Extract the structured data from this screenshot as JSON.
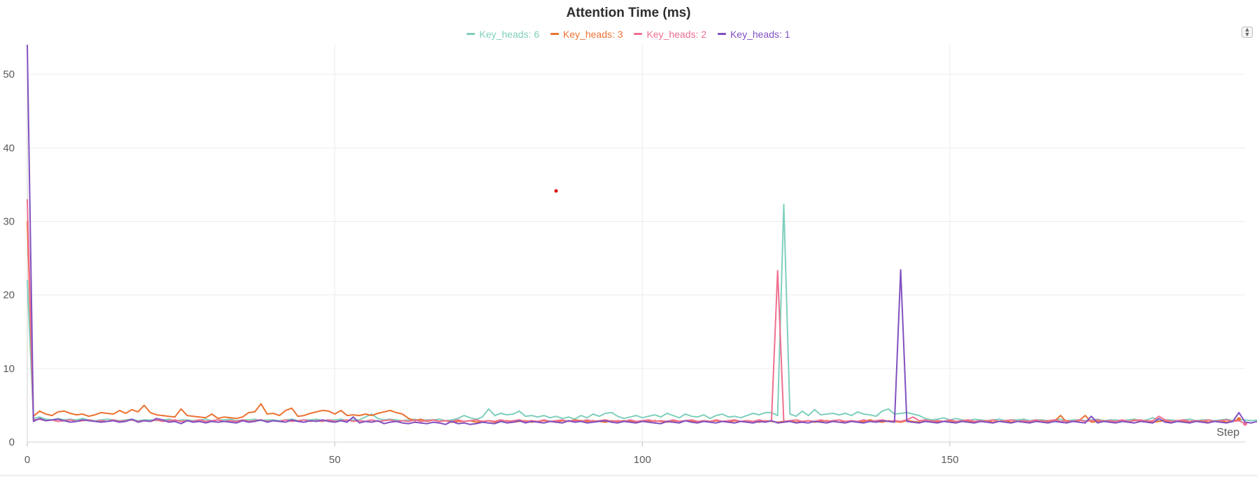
{
  "chart_data": {
    "type": "line",
    "title": "Attention Time (ms)",
    "xlabel": "Step",
    "ylabel": "",
    "xlim": [
      0,
      198
    ],
    "ylim": [
      0,
      54
    ],
    "x_ticks": [
      0,
      50,
      100,
      150
    ],
    "y_ticks": [
      0,
      10,
      20,
      30,
      40,
      50
    ],
    "grid": true,
    "legend_position": "top-center",
    "series": [
      {
        "name": "Key_heads: 6",
        "color": "#7fcfbd",
        "values": [
          22.0,
          3.2,
          3.4,
          3.1,
          3.0,
          3.2,
          3.0,
          3.1,
          3.0,
          3.2,
          3.0,
          2.9,
          3.0,
          3.1,
          3.0,
          2.9,
          3.0,
          3.1,
          2.9,
          3.0,
          3.0,
          2.9,
          3.0,
          3.1,
          2.9,
          3.0,
          3.0,
          2.9,
          3.0,
          3.1,
          2.9,
          3.0,
          3.0,
          3.1,
          2.9,
          3.0,
          3.0,
          3.1,
          2.9,
          3.0,
          3.0,
          2.9,
          3.0,
          3.1,
          2.9,
          3.0,
          3.0,
          3.1,
          2.9,
          3.0,
          3.0,
          3.1,
          2.9,
          3.0,
          3.0,
          3.4,
          3.8,
          3.2,
          3.0,
          3.1,
          3.0,
          2.9,
          3.0,
          3.1,
          2.9,
          3.0,
          3.0,
          3.1,
          2.9,
          3.0,
          3.2,
          3.6,
          3.3,
          3.1,
          3.4,
          4.5,
          3.6,
          3.9,
          3.7,
          3.8,
          4.2,
          3.5,
          3.6,
          3.4,
          3.6,
          3.3,
          3.5,
          3.2,
          3.4,
          3.1,
          3.6,
          3.3,
          3.8,
          3.5,
          3.9,
          4.0,
          3.5,
          3.2,
          3.4,
          3.6,
          3.3,
          3.5,
          3.7,
          3.4,
          3.9,
          3.6,
          3.3,
          3.8,
          3.5,
          3.4,
          3.7,
          3.2,
          3.6,
          3.8,
          3.4,
          3.5,
          3.3,
          3.6,
          3.9,
          3.7,
          4.0,
          4.0,
          3.6,
          32.3,
          3.8,
          3.5,
          4.2,
          3.6,
          4.4,
          3.7,
          3.8,
          3.9,
          3.7,
          3.9,
          3.6,
          4.1,
          3.8,
          3.7,
          3.5,
          4.2,
          4.5,
          3.8,
          3.9,
          4.0,
          3.8,
          3.6,
          3.2,
          3.0,
          3.1,
          3.3,
          3.0,
          3.2,
          3.0,
          2.9,
          3.1,
          3.0,
          2.9,
          3.0,
          3.1,
          2.9,
          3.0,
          3.0,
          3.1,
          2.9,
          3.0,
          3.0,
          2.9,
          3.0,
          3.1,
          2.9,
          3.0,
          3.0,
          2.9,
          3.0,
          3.1,
          2.9,
          3.0,
          3.0,
          2.9,
          3.0,
          3.1,
          2.9,
          3.0,
          3.3,
          2.9,
          3.0,
          3.0,
          2.9,
          3.0,
          3.1,
          2.9,
          3.0,
          3.0,
          2.9,
          3.0,
          3.1,
          2.9,
          3.0,
          3.0,
          2.9,
          3.0,
          3.1,
          2.9,
          3.0,
          2.8
        ]
      },
      {
        "name": "Key_heads: 3",
        "color": "#ec7232",
        "values": [
          30.0,
          3.5,
          4.2,
          3.8,
          3.6,
          4.1,
          4.2,
          3.9,
          3.7,
          3.8,
          3.5,
          3.7,
          4.0,
          3.9,
          3.8,
          4.3,
          3.9,
          4.4,
          4.1,
          5.0,
          4.0,
          3.7,
          3.6,
          3.5,
          3.4,
          4.5,
          3.6,
          3.5,
          3.4,
          3.3,
          3.8,
          3.2,
          3.4,
          3.3,
          3.2,
          3.4,
          4.0,
          4.1,
          5.2,
          3.8,
          3.9,
          3.6,
          4.3,
          4.6,
          3.5,
          3.6,
          3.9,
          4.1,
          4.3,
          4.2,
          3.8,
          4.3,
          3.6,
          3.7,
          3.6,
          3.8,
          3.6,
          3.9,
          4.1,
          4.3,
          4.0,
          3.8,
          3.2,
          2.9,
          3.1,
          2.8,
          3.0,
          2.8,
          2.9,
          2.7,
          2.8,
          2.8,
          2.9,
          2.7,
          2.8,
          2.9,
          2.7,
          2.8,
          2.9,
          2.7,
          2.8,
          2.9,
          2.7,
          2.8,
          2.9,
          2.8,
          2.7,
          2.9,
          2.8,
          3.0,
          2.9,
          2.8,
          2.9,
          2.8,
          2.7,
          2.9,
          2.8,
          2.9,
          2.8,
          2.7,
          2.9,
          2.8,
          2.9,
          2.8,
          2.7,
          2.9,
          2.8,
          2.9,
          2.8,
          2.7,
          2.9,
          2.8,
          2.9,
          2.8,
          2.7,
          2.9,
          2.8,
          2.9,
          2.8,
          2.7,
          2.9,
          2.8,
          2.7,
          2.8,
          2.9,
          2.7,
          2.8,
          2.9,
          2.7,
          2.8,
          2.9,
          2.8,
          2.7,
          2.8,
          2.9,
          2.7,
          2.8,
          3.0,
          2.8,
          2.7,
          2.9,
          2.8,
          2.7,
          2.9,
          2.8,
          2.7,
          2.8,
          2.9,
          2.7,
          2.8,
          2.9,
          2.7,
          2.8,
          2.9,
          2.7,
          2.8,
          2.9,
          2.7,
          2.8,
          2.9,
          2.7,
          2.8,
          2.9,
          2.7,
          2.8,
          2.9,
          2.7,
          2.8,
          3.6,
          2.7,
          2.8,
          2.9,
          3.6,
          2.7,
          2.8,
          2.9,
          2.7,
          2.8,
          2.9,
          2.7,
          3.0,
          2.8,
          2.9,
          2.7,
          2.8,
          2.9,
          2.7,
          2.8,
          2.9,
          2.7,
          2.8,
          2.9,
          2.7,
          2.8,
          2.9,
          2.7,
          2.8,
          3.1
        ]
      },
      {
        "name": "Key_heads: 2",
        "color": "#ef6f8f",
        "values": [
          33.0,
          3.0,
          3.1,
          2.9,
          3.0,
          2.8,
          2.9,
          3.0,
          2.8,
          2.9,
          3.0,
          2.8,
          2.9,
          2.8,
          3.0,
          2.8,
          2.9,
          3.0,
          2.8,
          2.9,
          2.8,
          3.0,
          2.8,
          2.9,
          3.0,
          2.8,
          2.9,
          2.8,
          3.0,
          2.8,
          2.9,
          3.0,
          2.8,
          2.9,
          2.8,
          3.0,
          2.8,
          2.9,
          3.0,
          2.8,
          2.9,
          2.8,
          3.0,
          2.8,
          2.9,
          3.0,
          2.8,
          2.9,
          2.8,
          3.0,
          2.8,
          2.9,
          3.0,
          2.8,
          2.9,
          2.8,
          3.0,
          2.8,
          2.9,
          3.0,
          2.8,
          2.9,
          2.8,
          3.0,
          2.8,
          2.9,
          3.0,
          2.8,
          2.9,
          2.8,
          3.0,
          2.8,
          2.9,
          3.0,
          2.8,
          2.9,
          2.8,
          3.0,
          2.8,
          2.9,
          3.0,
          2.8,
          2.9,
          2.8,
          3.0,
          2.8,
          2.9,
          3.0,
          2.8,
          2.9,
          2.8,
          3.0,
          2.8,
          2.9,
          3.0,
          2.8,
          2.9,
          2.8,
          3.0,
          2.8,
          2.9,
          3.0,
          2.8,
          2.9,
          2.8,
          3.0,
          2.8,
          2.9,
          3.0,
          2.8,
          2.9,
          2.8,
          3.0,
          2.8,
          2.9,
          3.0,
          2.8,
          2.9,
          2.8,
          3.0,
          2.8,
          2.9,
          23.3,
          2.8,
          2.9,
          3.0,
          2.8,
          2.9,
          2.8,
          3.0,
          2.8,
          2.9,
          3.0,
          2.8,
          2.9,
          2.8,
          3.0,
          2.8,
          2.9,
          3.0,
          2.8,
          2.9,
          2.8,
          3.0,
          3.4,
          2.9,
          3.0,
          2.8,
          2.9,
          2.8,
          3.0,
          2.8,
          2.9,
          3.0,
          2.8,
          2.9,
          2.8,
          3.0,
          2.8,
          2.9,
          3.0,
          2.8,
          2.9,
          2.8,
          3.0,
          2.8,
          2.9,
          3.0,
          2.8,
          2.9,
          2.8,
          3.0,
          2.8,
          2.9,
          3.0,
          2.8,
          2.9,
          2.8,
          3.0,
          2.8,
          2.9,
          3.0,
          2.8,
          2.9,
          3.5,
          3.0,
          2.8,
          2.9,
          3.0,
          2.8,
          2.9,
          2.8,
          3.0,
          2.8,
          2.9,
          3.0,
          2.8,
          2.9,
          2.5
        ]
      },
      {
        "name": "Key_heads: 1",
        "color": "#8150c0",
        "values": [
          54.0,
          2.8,
          3.2,
          2.9,
          3.0,
          3.1,
          2.9,
          2.7,
          2.8,
          3.0,
          2.9,
          2.8,
          2.7,
          2.8,
          2.9,
          2.7,
          2.8,
          3.1,
          2.7,
          2.9,
          2.8,
          3.2,
          3.0,
          2.7,
          2.8,
          2.5,
          2.9,
          2.7,
          2.8,
          2.6,
          2.8,
          2.7,
          2.8,
          2.7,
          2.6,
          2.9,
          2.7,
          2.8,
          3.0,
          2.7,
          2.9,
          2.8,
          2.7,
          3.0,
          2.8,
          2.7,
          2.9,
          2.8,
          3.0,
          2.8,
          2.7,
          2.9,
          2.7,
          3.4,
          2.6,
          2.8,
          2.7,
          2.9,
          2.5,
          2.7,
          2.8,
          2.6,
          2.5,
          2.7,
          2.6,
          2.5,
          2.7,
          2.6,
          2.4,
          2.8,
          2.5,
          2.6,
          2.4,
          2.5,
          2.7,
          2.6,
          2.5,
          2.8,
          2.6,
          2.7,
          2.9,
          2.6,
          2.8,
          2.7,
          2.6,
          2.8,
          2.7,
          2.6,
          2.9,
          2.7,
          2.8,
          2.6,
          2.7,
          2.8,
          2.9,
          2.7,
          2.6,
          2.8,
          2.7,
          2.6,
          2.8,
          2.7,
          2.6,
          2.5,
          2.8,
          2.7,
          2.6,
          2.9,
          2.7,
          2.6,
          2.8,
          2.7,
          2.6,
          2.8,
          2.7,
          2.6,
          2.8,
          2.7,
          2.6,
          2.8,
          2.7,
          2.9,
          2.6,
          2.7,
          2.8,
          2.6,
          2.7,
          2.6,
          2.8,
          2.7,
          2.6,
          2.8,
          2.7,
          2.6,
          2.8,
          2.7,
          2.6,
          2.8,
          2.7,
          2.9,
          2.8,
          2.7,
          23.4,
          2.8,
          2.7,
          2.6,
          2.8,
          2.7,
          2.6,
          2.8,
          2.7,
          2.6,
          2.8,
          2.7,
          2.6,
          2.8,
          2.7,
          2.6,
          2.8,
          2.7,
          2.6,
          2.8,
          2.7,
          2.6,
          2.8,
          2.7,
          2.6,
          2.8,
          2.7,
          2.6,
          2.8,
          2.7,
          2.6,
          3.5,
          2.6,
          2.8,
          2.7,
          2.6,
          2.8,
          2.7,
          2.6,
          2.8,
          2.7,
          2.6,
          3.2,
          2.7,
          2.6,
          2.8,
          2.7,
          2.6,
          2.8,
          2.7,
          2.6,
          2.8,
          2.7,
          2.6,
          2.8,
          4.0,
          2.7,
          2.6,
          2.8,
          2.6
        ]
      }
    ]
  }
}
